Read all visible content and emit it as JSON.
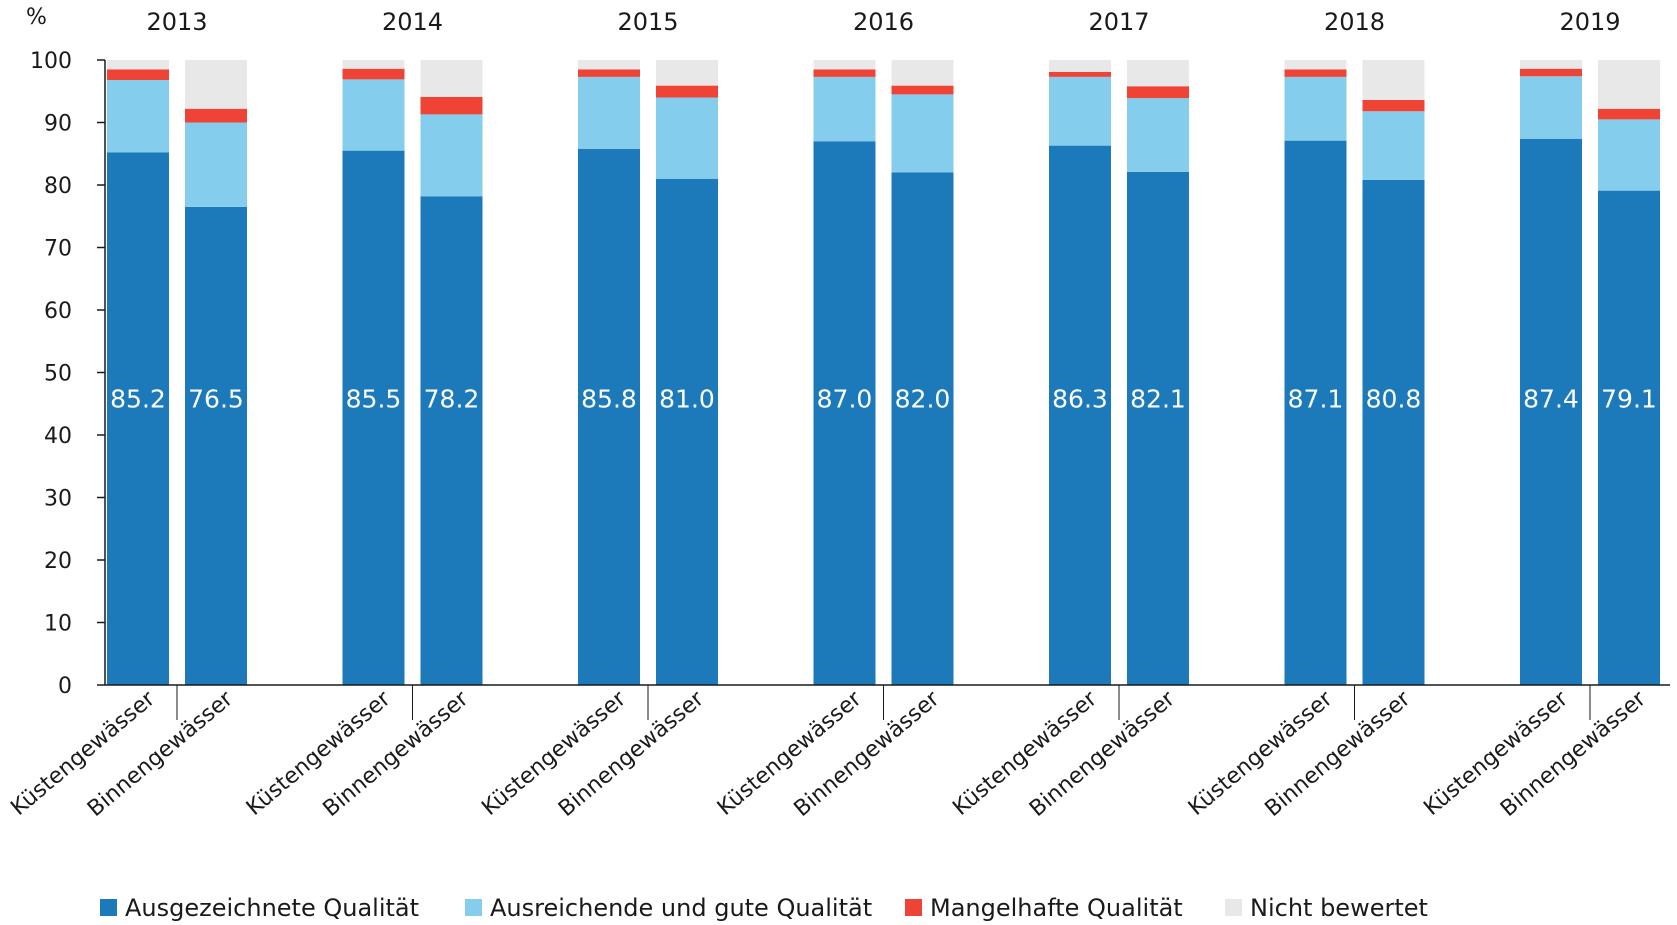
{
  "chart_data": {
    "type": "bar",
    "stacked": true,
    "ylabel": "%",
    "ylim": [
      0,
      100
    ],
    "yticks": [
      "0",
      "10",
      "20",
      "30",
      "40",
      "50",
      "60",
      "70",
      "80",
      "90",
      "100"
    ],
    "years": [
      "2013",
      "2014",
      "2015",
      "2016",
      "2017",
      "2018",
      "2019"
    ],
    "categories": [
      "Küstengewässer",
      "Binnengewässer"
    ],
    "grid": false,
    "legend_position": "bottom",
    "series": [
      {
        "name": "Ausgezeichnete Qualität",
        "color": "#1c7aba",
        "values": [
          [
            85.2,
            76.5
          ],
          [
            85.5,
            78.2
          ],
          [
            85.8,
            81.0
          ],
          [
            87.0,
            82.0
          ],
          [
            86.3,
            82.1
          ],
          [
            87.1,
            80.8
          ],
          [
            87.4,
            79.1
          ]
        ],
        "labels": [
          [
            "85.2",
            "76.5"
          ],
          [
            "85.5",
            "78.2"
          ],
          [
            "85.8",
            "81.0"
          ],
          [
            "87.0",
            "82.0"
          ],
          [
            "86.3",
            "82.1"
          ],
          [
            "87.1",
            "80.8"
          ],
          [
            "87.4",
            "79.1"
          ]
        ]
      },
      {
        "name": "Ausreichende und gute Qualität",
        "color": "#84cdec",
        "values": [
          [
            11.6,
            13.5
          ],
          [
            11.4,
            13.1
          ],
          [
            11.5,
            13.0
          ],
          [
            10.3,
            12.5
          ],
          [
            11.0,
            11.8
          ],
          [
            10.2,
            11.0
          ],
          [
            10.0,
            11.4
          ]
        ]
      },
      {
        "name": "Mangelhafte Qualität",
        "color": "#ef4336",
        "values": [
          [
            1.7,
            2.2
          ],
          [
            1.7,
            2.8
          ],
          [
            1.2,
            1.9
          ],
          [
            1.2,
            1.4
          ],
          [
            0.8,
            1.9
          ],
          [
            1.2,
            1.8
          ],
          [
            1.2,
            1.7
          ]
        ]
      },
      {
        "name": "Nicht bewertet",
        "color": "#e8e8e8",
        "values": [
          [
            1.5,
            7.8
          ],
          [
            1.4,
            5.9
          ],
          [
            1.5,
            4.1
          ],
          [
            1.5,
            4.1
          ],
          [
            1.9,
            4.2
          ],
          [
            1.5,
            6.4
          ],
          [
            1.4,
            7.8
          ]
        ]
      }
    ]
  }
}
